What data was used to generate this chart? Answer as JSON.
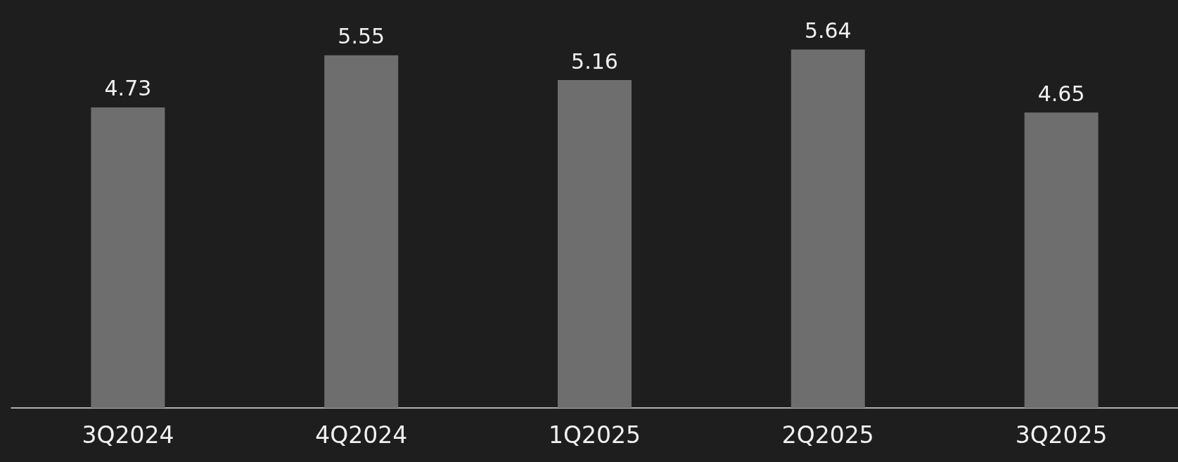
{
  "chart_data": {
    "type": "bar",
    "categories": [
      "3Q2024",
      "4Q2024",
      "1Q2025",
      "2Q2025",
      "3Q2025"
    ],
    "values": [
      4.73,
      5.55,
      5.16,
      5.64,
      4.65
    ],
    "color": "#6e6e6e",
    "data_labels": true
  }
}
